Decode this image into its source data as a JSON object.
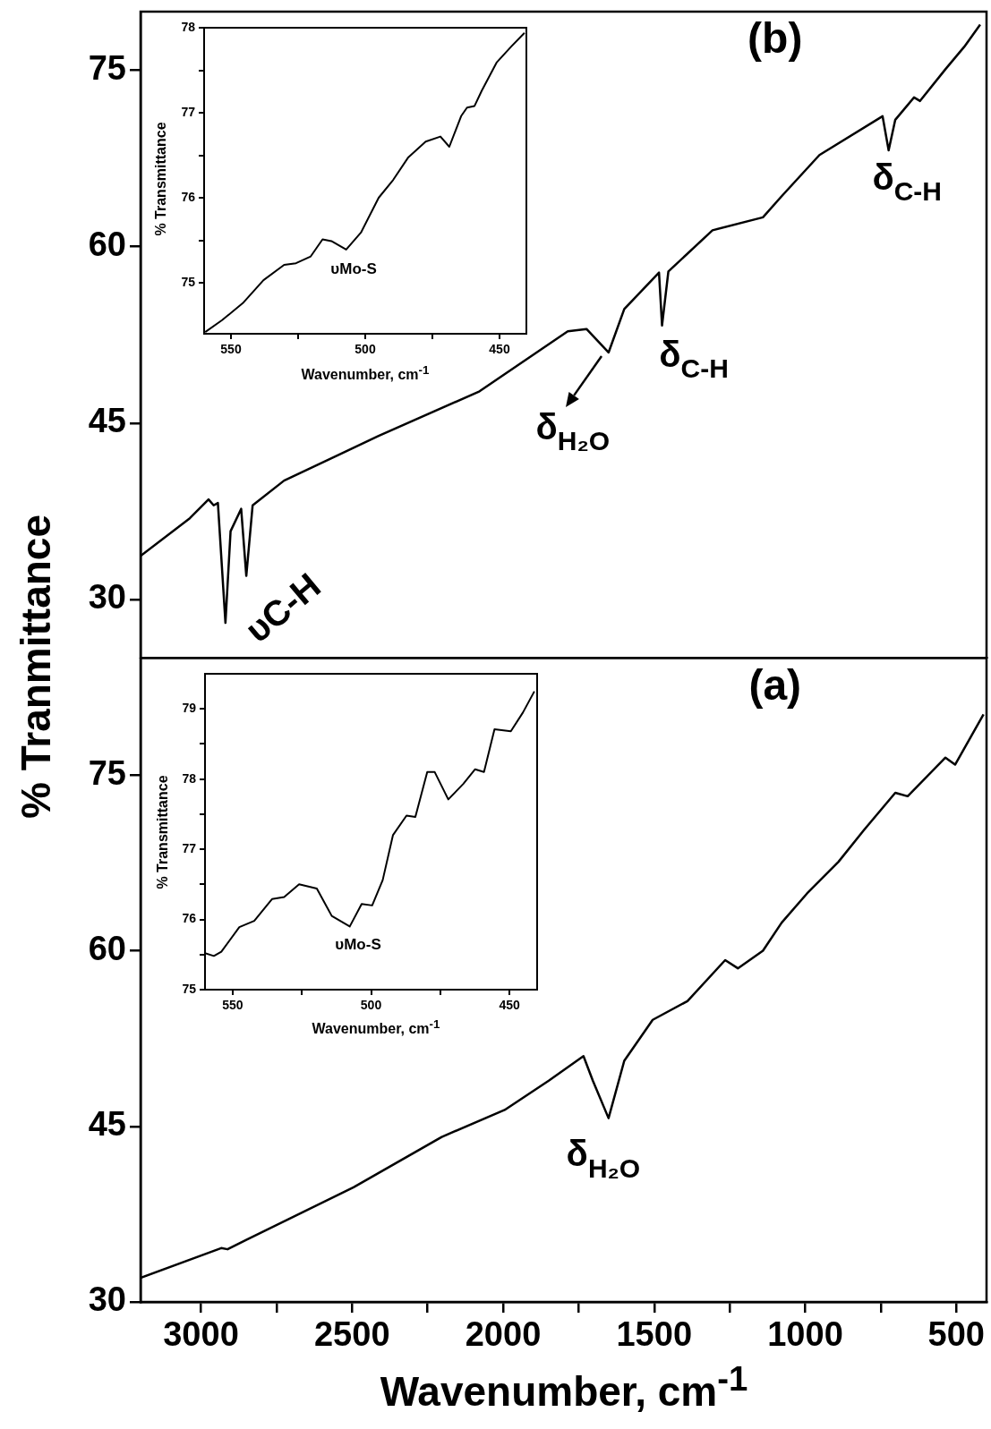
{
  "chart_data": [
    {
      "type": "line",
      "title": "(b)",
      "x": [
        3200,
        3037,
        2975,
        2958,
        2944,
        2919,
        2902,
        2867,
        2850,
        2829,
        2725,
        2412,
        2078,
        1786,
        1724,
        1651,
        1599,
        1484,
        1474,
        1453,
        1307,
        1140,
        1078,
        953,
        744,
        724,
        702,
        640,
        620,
        536,
        474,
        421
      ],
      "values": [
        33.7,
        36.9,
        38.5,
        38.0,
        38.2,
        28.0,
        35.8,
        37.7,
        32.0,
        38.0,
        40.1,
        43.9,
        47.7,
        52.8,
        53.0,
        51.0,
        54.7,
        57.8,
        53.3,
        57.9,
        61.4,
        62.5,
        64.3,
        67.8,
        71.1,
        68.2,
        70.8,
        72.7,
        72.4,
        75.1,
        77.0,
        78.9
      ],
      "color": "#000000",
      "xlim": [
        3200,
        400
      ],
      "xticks": [
        3000,
        2500,
        2000,
        1500,
        1000,
        500
      ],
      "ylim": [
        25,
        80
      ],
      "yticks": [
        30,
        45,
        60,
        75
      ],
      "tick_labels": "y",
      "annotations": [
        "υC-H",
        "δ$_{C-H}$",
        "δ$_{H₂O}$",
        "δ$_{C-H}$"
      ]
    },
    {
      "type": "line",
      "x": [
        559.6,
        553.3,
        545.6,
        537.9,
        530.2,
        525.8,
        520.3,
        515.9,
        512.6,
        507.1,
        501.6,
        495.0,
        489.6,
        484.1,
        477.5,
        472.0,
        468.7,
        464.3,
        462.1,
        459.3,
        456.6,
        451.1,
        445.6,
        440.7
      ],
      "values": [
        74.42,
        74.56,
        74.76,
        75.03,
        75.21,
        75.23,
        75.31,
        75.51,
        75.49,
        75.39,
        75.59,
        76.0,
        76.21,
        76.47,
        76.66,
        76.72,
        76.6,
        76.96,
        77.06,
        77.08,
        77.26,
        77.59,
        77.78,
        77.94
      ],
      "color": "#000000",
      "xlim": [
        560,
        440
      ],
      "xticks": [
        550,
        {
          "value": 525,
          "label": null
        },
        500,
        {
          "value": 475,
          "label": null
        },
        450
      ],
      "ylim": [
        74.4,
        78
      ],
      "yticks": [
        75,
        {
          "value": 75.5,
          "label": null
        },
        76,
        {
          "value": 76.5,
          "label": null
        },
        77,
        {
          "value": 77.5,
          "label": null
        },
        78
      ],
      "xlabel": "Wavenumber, cm$^{-1}$",
      "ylabel": "% Transmittance",
      "annotations": [
        "υMo-S"
      ]
    },
    {
      "type": "line",
      "title": "(a)",
      "x": [
        3200,
        2933,
        2912,
        2850,
        2495,
        2203,
        1995,
        1849,
        1734,
        1703,
        1651,
        1599,
        1505,
        1390,
        1265,
        1223,
        1140,
        1078,
        994,
        890,
        806,
        702,
        661,
        536,
        504,
        410
      ],
      "values": [
        32.05,
        34.6,
        34.5,
        35.3,
        39.8,
        44.1,
        46.4,
        48.9,
        51.0,
        48.9,
        45.7,
        50.6,
        54.1,
        55.7,
        59.2,
        58.5,
        60.0,
        62.4,
        64.9,
        67.6,
        70.3,
        73.5,
        73.2,
        76.5,
        75.9,
        80.2
      ],
      "color": "#000000",
      "xlim": [
        3200,
        400
      ],
      "xticks": [
        3000,
        {
          "value": 2750,
          "label": null
        },
        2500,
        {
          "value": 2250,
          "label": null
        },
        2000,
        {
          "value": 1750,
          "label": null
        },
        1500,
        {
          "value": 1250,
          "label": null
        },
        1000,
        {
          "value": 750,
          "label": null
        },
        500
      ],
      "ylim": [
        30,
        85
      ],
      "yticks": [
        30,
        45,
        60,
        75
      ],
      "xlabel": "Wavenumber, cm$^{-1}$",
      "ylabel": "% Tranmittance",
      "annotations": [
        "δ$_{H₂O}$"
      ]
    },
    {
      "type": "line",
      "x": [
        560,
        556.8,
        554.1,
        547.6,
        542.2,
        535.8,
        531.4,
        526.0,
        519.6,
        514.2,
        507.7,
        503.4,
        499.6,
        495.8,
        492.1,
        487.2,
        484.0,
        479.7,
        477.0,
        472.1,
        466.7,
        462.4,
        459.2,
        455.4,
        449.5,
        445.1,
        441.0
      ],
      "values": [
        75.52,
        75.48,
        75.54,
        75.89,
        75.98,
        76.29,
        76.32,
        76.5,
        76.44,
        76.05,
        75.9,
        76.22,
        76.2,
        76.56,
        77.2,
        77.48,
        77.46,
        78.1,
        78.1,
        77.71,
        77.93,
        78.14,
        78.1,
        78.71,
        78.68,
        78.95,
        79.25
      ],
      "color": "#000000",
      "xlim": [
        560,
        440
      ],
      "xticks": [
        550,
        {
          "value": 525,
          "label": null
        },
        500,
        {
          "value": 475,
          "label": null
        },
        450
      ],
      "ylim": [
        75,
        79.5
      ],
      "yticks": [
        75,
        {
          "value": 75.5,
          "label": null
        },
        76,
        {
          "value": 76.5,
          "label": null
        },
        77,
        {
          "value": 77.5,
          "label": null
        },
        78,
        {
          "value": 78.5,
          "label": null
        },
        79
      ],
      "xlabel": "Wavenumber, cm$^{-1}$",
      "ylabel": "% Transmittance",
      "annotations": [
        "υMo-S"
      ]
    }
  ]
}
